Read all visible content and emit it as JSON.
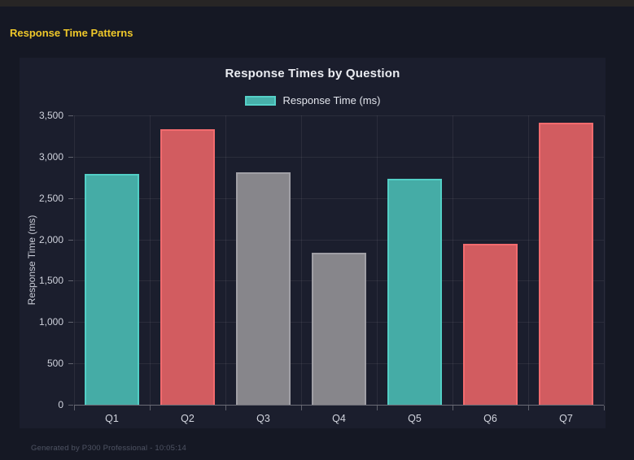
{
  "page": {
    "header_title": "Response Time Patterns",
    "footer": "Generated by P300 Professional - 10:05:14"
  },
  "chart_data": {
    "type": "bar",
    "title": "Response Times by Question",
    "legend": {
      "label": "Response Time (ms)",
      "position": "top"
    },
    "categories": [
      "Q1",
      "Q2",
      "Q3",
      "Q4",
      "Q5",
      "Q6",
      "Q7"
    ],
    "values": [
      2790,
      3330,
      2810,
      1840,
      2730,
      1950,
      3410
    ],
    "bar_color_keys": [
      "teal",
      "red",
      "gray",
      "gray",
      "teal",
      "red",
      "red"
    ],
    "series_colors": {
      "teal": {
        "fill": "#45ACA6",
        "border": "#52CFC6"
      },
      "red": {
        "fill": "#D25C60",
        "border": "#F26B6E"
      },
      "gray": {
        "fill": "#87868B",
        "border": "#A09FA5"
      }
    },
    "xlabel": "",
    "ylabel": "Response Time (ms)",
    "ylim": [
      0,
      3500
    ],
    "ytick_step": 500,
    "grid": true,
    "background": {
      "page": "#151824",
      "panel": "#1B1E2D",
      "top_bar": "#272525"
    },
    "accent_title_color": "#EFC82A"
  }
}
